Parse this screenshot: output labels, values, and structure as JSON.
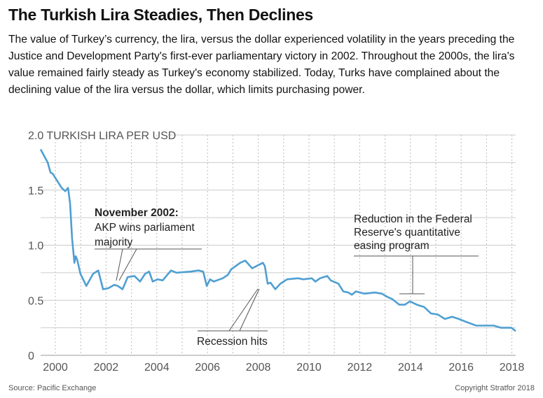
{
  "title": "The Turkish Lira Steadies, Then Declines",
  "subtitle": "The value of Turkey’s currency, the lira, versus the dollar experienced volatility in the years preceding the Justice and Development Party's first-ever parliamentary victory in 2002. Throughout the 2000s, the lira's value remained fairly steady as Turkey's economy stabilized. Today, Turks have complained about the declining value of the lira versus the dollar, which limits purchasing power.",
  "source": "Source: Pacific Exchange",
  "copyright": "Copyright Stratfor 2018",
  "colors": {
    "line": "#4f9fd2",
    "grid": "#cccccc",
    "text": "#111111"
  },
  "chart_data": {
    "type": "line",
    "title": "The Turkish Lira Steadies, Then Declines",
    "ylabel": "TURKISH LIRA PER USD",
    "xlabel": "",
    "xlim": [
      1999.4,
      2018.2
    ],
    "ylim": [
      0,
      2.0
    ],
    "yticks": [
      0,
      0.5,
      1.0,
      1.5,
      2.0
    ],
    "ytick_labels": [
      "0",
      "0.5",
      "1.0",
      "1.5",
      "2.0"
    ],
    "xticks": [
      2000,
      2002,
      2004,
      2006,
      2008,
      2010,
      2012,
      2014,
      2016,
      2018
    ],
    "xtick_labels": [
      "2000",
      "2002",
      "2004",
      "2006",
      "2008",
      "2010",
      "2012",
      "2014",
      "2016",
      "2018"
    ],
    "grid": true,
    "series": [
      {
        "name": "Turkish lira per USD",
        "x": [
          1999.42,
          1999.7,
          1999.81,
          1999.89,
          2000.25,
          2000.39,
          2000.5,
          2000.58,
          2000.66,
          2000.75,
          2000.8,
          2000.86,
          2000.99,
          2001.22,
          2001.49,
          2001.69,
          2001.88,
          2002.1,
          2002.32,
          2002.46,
          2002.65,
          2002.85,
          2003.12,
          2003.34,
          2003.54,
          2003.7,
          2003.84,
          2004.03,
          2004.23,
          2004.56,
          2004.78,
          2005.33,
          2005.64,
          2005.83,
          2005.97,
          2006.1,
          2006.24,
          2006.6,
          2006.8,
          2006.93,
          2007.29,
          2007.49,
          2007.76,
          2008.18,
          2008.26,
          2008.37,
          2008.48,
          2008.67,
          2008.87,
          2009.14,
          2009.56,
          2009.78,
          2010.11,
          2010.25,
          2010.44,
          2010.72,
          2010.86,
          2011.16,
          2011.35,
          2011.55,
          2011.69,
          2011.85,
          2012.18,
          2012.6,
          2012.87,
          2013.09,
          2013.29,
          2013.56,
          2013.78,
          2013.98,
          2014.25,
          2014.53,
          2014.81,
          2015.08,
          2015.36,
          2015.64,
          2015.91,
          2016.24,
          2016.6,
          2016.88,
          2017.29,
          2017.57,
          2017.98,
          2018.15
        ],
        "y": [
          1.87,
          1.75,
          1.66,
          1.65,
          1.52,
          1.49,
          1.52,
          1.38,
          1.06,
          0.84,
          0.9,
          0.87,
          0.74,
          0.63,
          0.74,
          0.77,
          0.6,
          0.61,
          0.64,
          0.63,
          0.6,
          0.71,
          0.72,
          0.67,
          0.74,
          0.76,
          0.67,
          0.69,
          0.68,
          0.77,
          0.75,
          0.76,
          0.77,
          0.76,
          0.63,
          0.69,
          0.67,
          0.7,
          0.73,
          0.78,
          0.84,
          0.86,
          0.79,
          0.84,
          0.81,
          0.65,
          0.66,
          0.6,
          0.65,
          0.69,
          0.7,
          0.69,
          0.7,
          0.67,
          0.7,
          0.72,
          0.68,
          0.65,
          0.58,
          0.57,
          0.55,
          0.58,
          0.56,
          0.57,
          0.56,
          0.53,
          0.51,
          0.46,
          0.46,
          0.49,
          0.46,
          0.44,
          0.38,
          0.37,
          0.33,
          0.35,
          0.33,
          0.3,
          0.27,
          0.27,
          0.27,
          0.25,
          0.25,
          0.22
        ]
      }
    ],
    "annotations": [
      {
        "id": "akp",
        "heading": "November 2002:",
        "lines": [
          "AKP wins parliament",
          "majority"
        ],
        "x": 2002.4,
        "y": 0.63
      },
      {
        "id": "recession",
        "lines": [
          "Recession hits"
        ],
        "x": 2008.2,
        "y": 0.6
      },
      {
        "id": "fed",
        "lines": [
          "Reduction in the Federal",
          "Reserve's quantitative",
          "easing program"
        ],
        "x": 2013.9,
        "y": 0.55
      }
    ]
  }
}
